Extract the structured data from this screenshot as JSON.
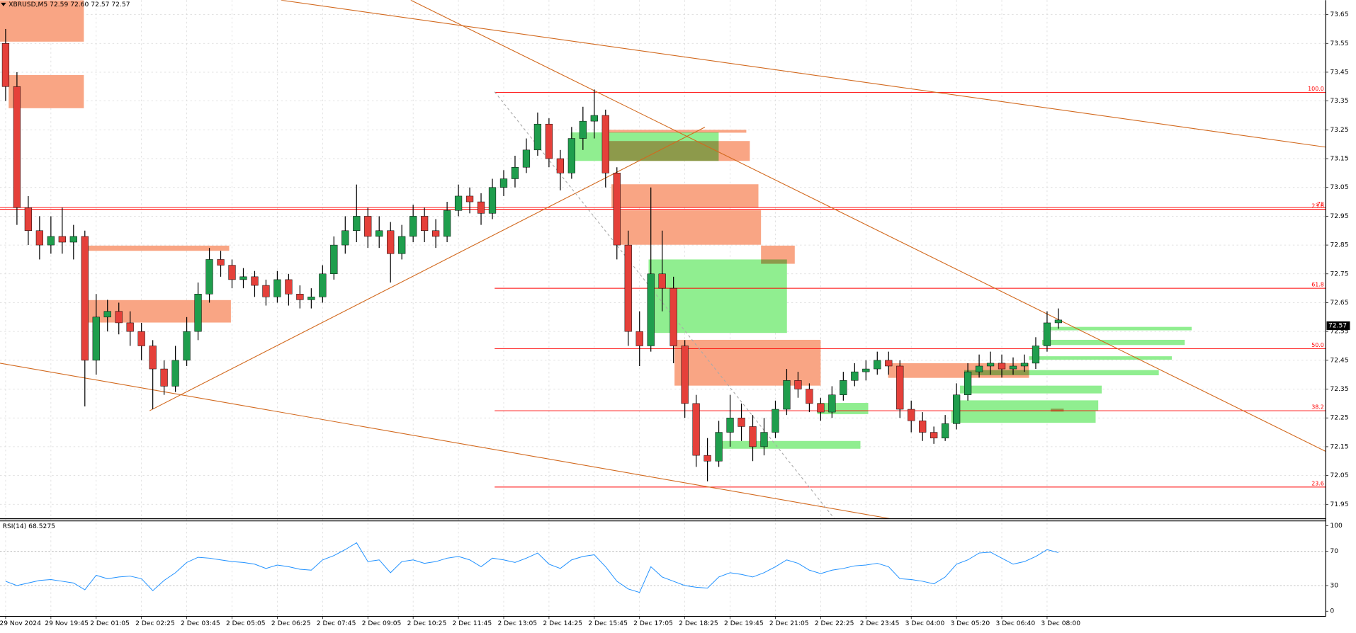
{
  "chart_data": [
    {
      "type": "candlestick",
      "title": "XBRUSD,M5  72.59 72.60 72.57 72.57",
      "categories": [
        "29 Nov 2024",
        null,
        null,
        null,
        "29 Nov 19:45",
        null,
        null,
        null,
        "2 Dec 01:05",
        null,
        null,
        null,
        "2 Dec 02:25",
        null,
        null,
        null,
        "2 Dec 03:45",
        null,
        null,
        null,
        "2 Dec 05:05",
        null,
        null,
        null,
        "2 Dec 06:25",
        null,
        null,
        null,
        "2 Dec 07:45",
        null,
        null,
        null,
        "2 Dec 09:05",
        null,
        null,
        null,
        "2 Dec 10:25",
        null,
        null,
        null,
        "2 Dec 11:45",
        null,
        null,
        null,
        "2 Dec 13:05",
        null,
        null,
        null,
        "2 Dec 14:25",
        null,
        null,
        null,
        "2 Dec 15:45",
        null,
        null,
        null,
        "2 Dec 17:05",
        null,
        null,
        null,
        "2 Dec 18:25",
        null,
        null,
        null,
        "2 Dec 19:45",
        null,
        null,
        null,
        "2 Dec 21:05",
        null,
        null,
        null,
        "2 Dec 22:25",
        null,
        null,
        null,
        "2 Dec 23:45",
        null,
        null,
        null,
        "3 Dec 04:00",
        null,
        null,
        null,
        "3 Dec 05:20",
        null,
        null,
        null,
        "3 Dec 06:40",
        null,
        null,
        null,
        "3 Dec 08:00",
        null
      ],
      "open": [
        73.55,
        73.4,
        72.98,
        72.9,
        72.85,
        72.88,
        72.86,
        72.88,
        72.45,
        72.6,
        72.62,
        72.58,
        72.55,
        72.5,
        72.42,
        72.36,
        72.45,
        72.55,
        72.68,
        72.8,
        72.78,
        72.73,
        72.74,
        72.71,
        72.67,
        72.73,
        72.68,
        72.66,
        72.67,
        72.75,
        72.85,
        72.9,
        72.95,
        72.88,
        72.9,
        72.82,
        72.88,
        72.95,
        72.9,
        72.88,
        72.97,
        73.02,
        73.0,
        72.96,
        73.05,
        73.08,
        73.12,
        73.18,
        73.27,
        73.15,
        73.1,
        73.22,
        73.28,
        73.3,
        73.1,
        72.85,
        72.55,
        72.5,
        72.75,
        72.7,
        72.5,
        72.3,
        72.12,
        72.1,
        72.2,
        72.25,
        72.22,
        72.15,
        72.2,
        72.28,
        72.38,
        72.35,
        72.3,
        72.27,
        72.33,
        72.38,
        72.41,
        72.42,
        72.45,
        72.43,
        72.28,
        72.24,
        72.2,
        72.18,
        72.23,
        72.33,
        72.41,
        72.43,
        72.44,
        72.42,
        72.43,
        72.44,
        72.5,
        72.58
      ],
      "high": [
        73.6,
        73.45,
        73.02,
        72.95,
        72.95,
        72.98,
        72.92,
        72.9,
        72.68,
        72.66,
        72.65,
        72.62,
        72.58,
        72.52,
        72.45,
        72.5,
        72.6,
        72.72,
        72.84,
        72.83,
        72.8,
        72.77,
        72.76,
        72.73,
        72.76,
        72.75,
        72.71,
        72.7,
        72.78,
        72.88,
        72.95,
        73.06,
        72.98,
        72.95,
        72.93,
        72.92,
        72.99,
        72.98,
        72.94,
        73.0,
        73.06,
        73.05,
        73.03,
        73.08,
        73.11,
        73.16,
        73.22,
        73.31,
        73.29,
        73.18,
        73.26,
        73.33,
        73.39,
        73.32,
        73.12,
        72.9,
        72.62,
        73.05,
        72.9,
        72.74,
        72.52,
        72.33,
        72.18,
        72.24,
        72.33,
        72.3,
        72.26,
        72.25,
        72.31,
        72.42,
        72.41,
        72.37,
        72.32,
        72.36,
        72.41,
        72.44,
        72.45,
        72.48,
        72.48,
        72.45,
        72.31,
        72.27,
        72.22,
        72.26,
        72.37,
        72.44,
        72.47,
        72.48,
        72.47,
        72.46,
        72.47,
        72.53,
        72.62,
        72.63
      ],
      "low": [
        73.35,
        72.92,
        72.85,
        72.8,
        72.82,
        72.82,
        72.8,
        72.29,
        72.4,
        72.55,
        72.54,
        72.5,
        72.45,
        72.28,
        72.33,
        72.34,
        72.43,
        72.52,
        72.65,
        72.74,
        72.7,
        72.7,
        72.67,
        72.64,
        72.65,
        72.64,
        72.63,
        72.63,
        72.65,
        72.73,
        72.82,
        72.86,
        72.84,
        72.84,
        72.72,
        72.8,
        72.86,
        72.86,
        72.84,
        72.86,
        72.95,
        72.96,
        72.92,
        72.94,
        73.02,
        73.05,
        73.1,
        73.16,
        73.12,
        73.04,
        73.08,
        73.18,
        73.22,
        73.05,
        72.8,
        72.5,
        72.43,
        72.48,
        72.62,
        72.44,
        72.25,
        72.08,
        72.03,
        72.08,
        72.15,
        72.17,
        72.1,
        72.12,
        72.18,
        72.26,
        72.32,
        72.27,
        72.24,
        72.25,
        72.31,
        72.36,
        72.38,
        72.4,
        72.4,
        72.25,
        72.2,
        72.17,
        72.16,
        72.17,
        72.21,
        72.31,
        72.39,
        72.4,
        72.39,
        72.4,
        72.41,
        72.42,
        72.48,
        72.56
      ],
      "close": [
        73.4,
        72.98,
        72.9,
        72.85,
        72.88,
        72.86,
        72.88,
        72.45,
        72.6,
        72.62,
        72.58,
        72.55,
        72.5,
        72.42,
        72.36,
        72.45,
        72.55,
        72.68,
        72.8,
        72.78,
        72.73,
        72.74,
        72.71,
        72.67,
        72.73,
        72.68,
        72.66,
        72.67,
        72.75,
        72.85,
        72.9,
        72.95,
        72.88,
        72.9,
        72.82,
        72.88,
        72.95,
        72.9,
        72.88,
        72.97,
        73.02,
        73.0,
        72.96,
        73.05,
        73.08,
        73.12,
        73.18,
        73.27,
        73.15,
        73.1,
        73.22,
        73.28,
        73.3,
        73.1,
        72.85,
        72.55,
        72.5,
        72.75,
        72.7,
        72.5,
        72.3,
        72.12,
        72.1,
        72.2,
        72.25,
        72.22,
        72.15,
        72.2,
        72.28,
        72.38,
        72.35,
        72.3,
        72.27,
        72.33,
        72.38,
        72.41,
        72.42,
        72.45,
        72.43,
        72.28,
        72.24,
        72.2,
        72.18,
        72.23,
        72.33,
        72.41,
        72.43,
        72.44,
        72.42,
        72.43,
        72.44,
        72.5,
        72.58,
        72.59
      ],
      "up_color": "#1f9e4d",
      "down_color": "#e5403a",
      "wick_color": "#000000",
      "ylim": [
        71.9,
        73.7
      ],
      "yticks": [
        73.65,
        73.55,
        73.45,
        73.35,
        73.25,
        73.15,
        73.05,
        72.95,
        72.85,
        72.75,
        72.65,
        72.55,
        72.45,
        72.35,
        72.25,
        72.15,
        72.05,
        71.95
      ],
      "grid": true,
      "last_price": 72.57,
      "zones": [
        {
          "color": "#f9a584",
          "x": [
            -0.5,
            6.91
          ],
          "y": [
            73.556,
            73.7
          ]
        },
        {
          "color": "#f9a584",
          "x": [
            0.27,
            6.91
          ],
          "y": [
            73.325,
            73.44
          ]
        },
        {
          "color": "#f9a584",
          "x": [
            6.76,
            19.75
          ],
          "y": [
            72.83,
            72.848
          ]
        },
        {
          "color": "#f9a584",
          "x": [
            6.91,
            19.9
          ],
          "y": [
            72.581,
            72.659
          ]
        },
        {
          "color": "#f9a584",
          "x": [
            52.75,
            65.43
          ],
          "y": [
            73.24,
            73.25
          ]
        },
        {
          "color": "#f9a584",
          "x": [
            52.75,
            65.74
          ],
          "y": [
            73.142,
            73.211
          ]
        },
        {
          "color": "#f9a584",
          "x": [
            53.52,
            66.5
          ],
          "y": [
            72.98,
            73.061
          ]
        },
        {
          "color": "#f9a584",
          "x": [
            53.74,
            66.73
          ],
          "y": [
            72.851,
            72.971
          ]
        },
        {
          "color": "#f9a584",
          "x": [
            66.73,
            69.71
          ],
          "y": [
            72.785,
            72.848
          ]
        },
        {
          "color": "#f9a584",
          "x": [
            59.09,
            72.0
          ],
          "y": [
            72.362,
            72.521
          ]
        },
        {
          "color": "#f9a584",
          "x": [
            77.96,
            90.41
          ],
          "y": [
            72.389,
            72.44
          ]
        },
        {
          "color": "#f9a584",
          "x": [
            92.32,
            93.47
          ],
          "y": [
            72.272,
            72.282
          ]
        },
        {
          "color": "#90ee90",
          "x": [
            49.92,
            62.99
          ],
          "y": [
            73.142,
            73.241
          ]
        },
        {
          "color": "#90ee90",
          "x": [
            56.8,
            69.02
          ],
          "y": [
            72.545,
            72.8
          ]
        },
        {
          "color": "#90ee90",
          "x": [
            62.91,
            75.51
          ],
          "y": [
            72.143,
            72.17
          ]
        },
        {
          "color": "#90ee90",
          "x": [
            71.7,
            76.2
          ],
          "y": [
            72.263,
            72.302
          ]
        },
        {
          "color": "#90ee90",
          "x": [
            83.54,
            96.29
          ],
          "y": [
            72.233,
            72.275
          ]
        },
        {
          "color": "#90ee90",
          "x": [
            83.92,
            96.52
          ],
          "y": [
            72.275,
            72.311
          ]
        },
        {
          "color": "#90ee90",
          "x": [
            84.3,
            96.83
          ],
          "y": [
            72.335,
            72.362
          ]
        },
        {
          "color": "#90ee90",
          "x": [
            84.68,
            101.87
          ],
          "y": [
            72.398,
            72.416
          ]
        },
        {
          "color": "#90ee90",
          "x": [
            90.41,
            103.02
          ],
          "y": [
            72.452,
            72.464
          ]
        },
        {
          "color": "#90ee90",
          "x": [
            91.56,
            104.16
          ],
          "y": [
            72.503,
            72.521
          ]
        },
        {
          "color": "#90ee90",
          "x": [
            91.94,
            104.77
          ],
          "y": [
            72.554,
            72.566
          ]
        }
      ],
      "trend_lines": [
        {
          "color": "#d2691e",
          "dashed": false,
          "x": [
            24.33,
            116.6
          ],
          "y": [
            73.7,
            73.19
          ]
        },
        {
          "color": "#d2691e",
          "dashed": false,
          "x": [
            35.79,
            116.6
          ],
          "y": [
            73.7,
            72.134
          ]
        },
        {
          "color": "#d2691e",
          "dashed": false,
          "x": [
            -0.5,
            78.19
          ],
          "y": [
            72.44,
            71.9
          ]
        },
        {
          "color": "#d2691e",
          "dashed": false,
          "x": [
            12.72,
            61.77
          ],
          "y": [
            72.275,
            73.259
          ]
        },
        {
          "color": "#a9a9a9",
          "dashed": true,
          "x": [
            43.2,
            73.22
          ],
          "y": [
            73.382,
            71.9
          ]
        }
      ],
      "levels": [
        {
          "label": "100.0",
          "value": 73.38,
          "from": 43.2
        },
        {
          "label": "61.8",
          "value": 72.7,
          "from": 43.2
        },
        {
          "label": "50.0",
          "value": 72.49,
          "from": 43.2
        },
        {
          "label": "38.2",
          "value": 72.275,
          "from": 43.2
        },
        {
          "label": "23.6",
          "value": 72.01,
          "from": 43.2
        },
        {
          "label": "78",
          "value": 72.98,
          "from": -0.5
        },
        {
          "label": "23.6",
          "value": 72.974,
          "from": -0.5
        }
      ],
      "level_color": "#ff0000"
    },
    {
      "type": "line",
      "title": "RSI(14) 68.5275",
      "values": [
        35,
        30,
        33,
        36,
        37,
        35,
        33,
        25,
        42,
        38,
        40,
        41,
        38,
        24,
        36,
        45,
        57,
        63,
        62,
        60,
        58,
        57,
        55,
        50,
        54,
        52,
        49,
        48,
        60,
        65,
        72,
        80,
        58,
        60,
        45,
        58,
        60,
        56,
        58,
        62,
        64,
        60,
        52,
        62,
        60,
        57,
        62,
        68,
        55,
        50,
        60,
        64,
        66,
        52,
        35,
        26,
        22,
        52,
        40,
        35,
        30,
        28,
        27,
        40,
        45,
        43,
        40,
        45,
        52,
        60,
        56,
        48,
        44,
        48,
        50,
        53,
        54,
        56,
        52,
        38,
        37,
        35,
        32,
        40,
        55,
        60,
        68,
        69,
        62,
        55,
        58,
        64,
        72,
        68.5275
      ],
      "color": "#1e90ff",
      "ylim": [
        0,
        100
      ],
      "yticks": [
        100,
        70,
        30,
        0
      ],
      "levels": [
        70,
        30
      ]
    }
  ]
}
